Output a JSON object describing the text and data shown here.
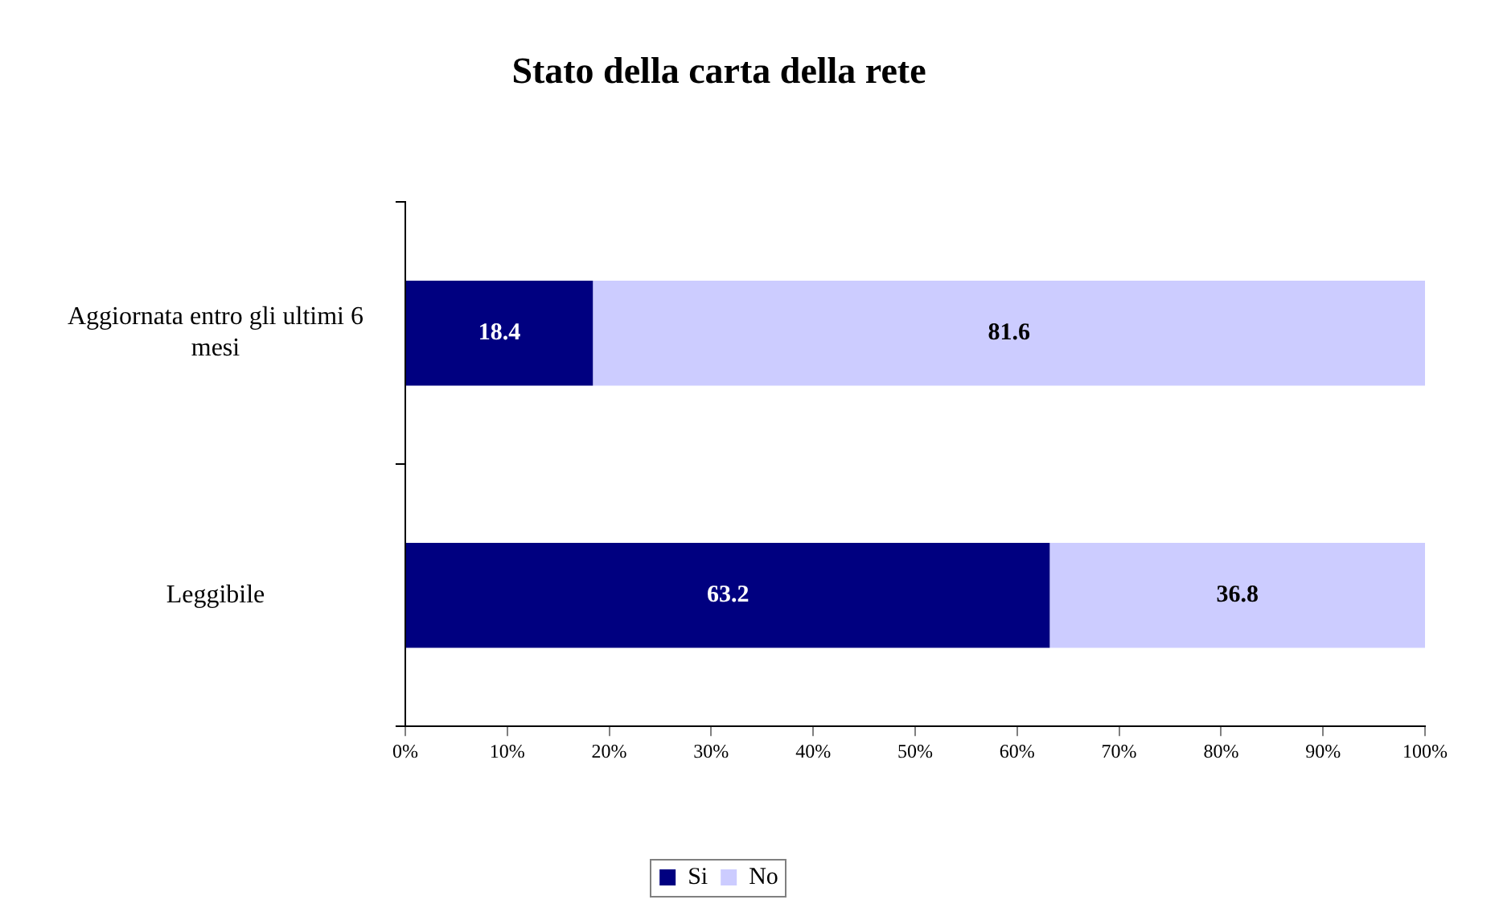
{
  "chart_data": {
    "type": "bar",
    "title": "Stato della carta della rete",
    "orientation": "horizontal",
    "stacked": true,
    "categories": [
      "Aggiornata entro gli ultimi 6 mesi",
      "Leggibile"
    ],
    "series": [
      {
        "name": "Si",
        "color": "#000080",
        "values": [
          18.4,
          63.2
        ]
      },
      {
        "name": "No",
        "color": "#ccccff",
        "values": [
          81.6,
          36.8
        ]
      }
    ],
    "xlim": [
      0,
      100
    ],
    "xticks": [
      {
        "value": 0,
        "label": "0%"
      },
      {
        "value": 10,
        "label": "10%"
      },
      {
        "value": 20,
        "label": "20%"
      },
      {
        "value": 30,
        "label": "30%"
      },
      {
        "value": 40,
        "label": "40%"
      },
      {
        "value": 50,
        "label": "50%"
      },
      {
        "value": 60,
        "label": "60%"
      },
      {
        "value": 70,
        "label": "70%"
      },
      {
        "value": 80,
        "label": "80%"
      },
      {
        "value": 90,
        "label": "90%"
      },
      {
        "value": 100,
        "label": "100%"
      }
    ],
    "data_labels": true,
    "legend": "bottom",
    "grid": false
  }
}
